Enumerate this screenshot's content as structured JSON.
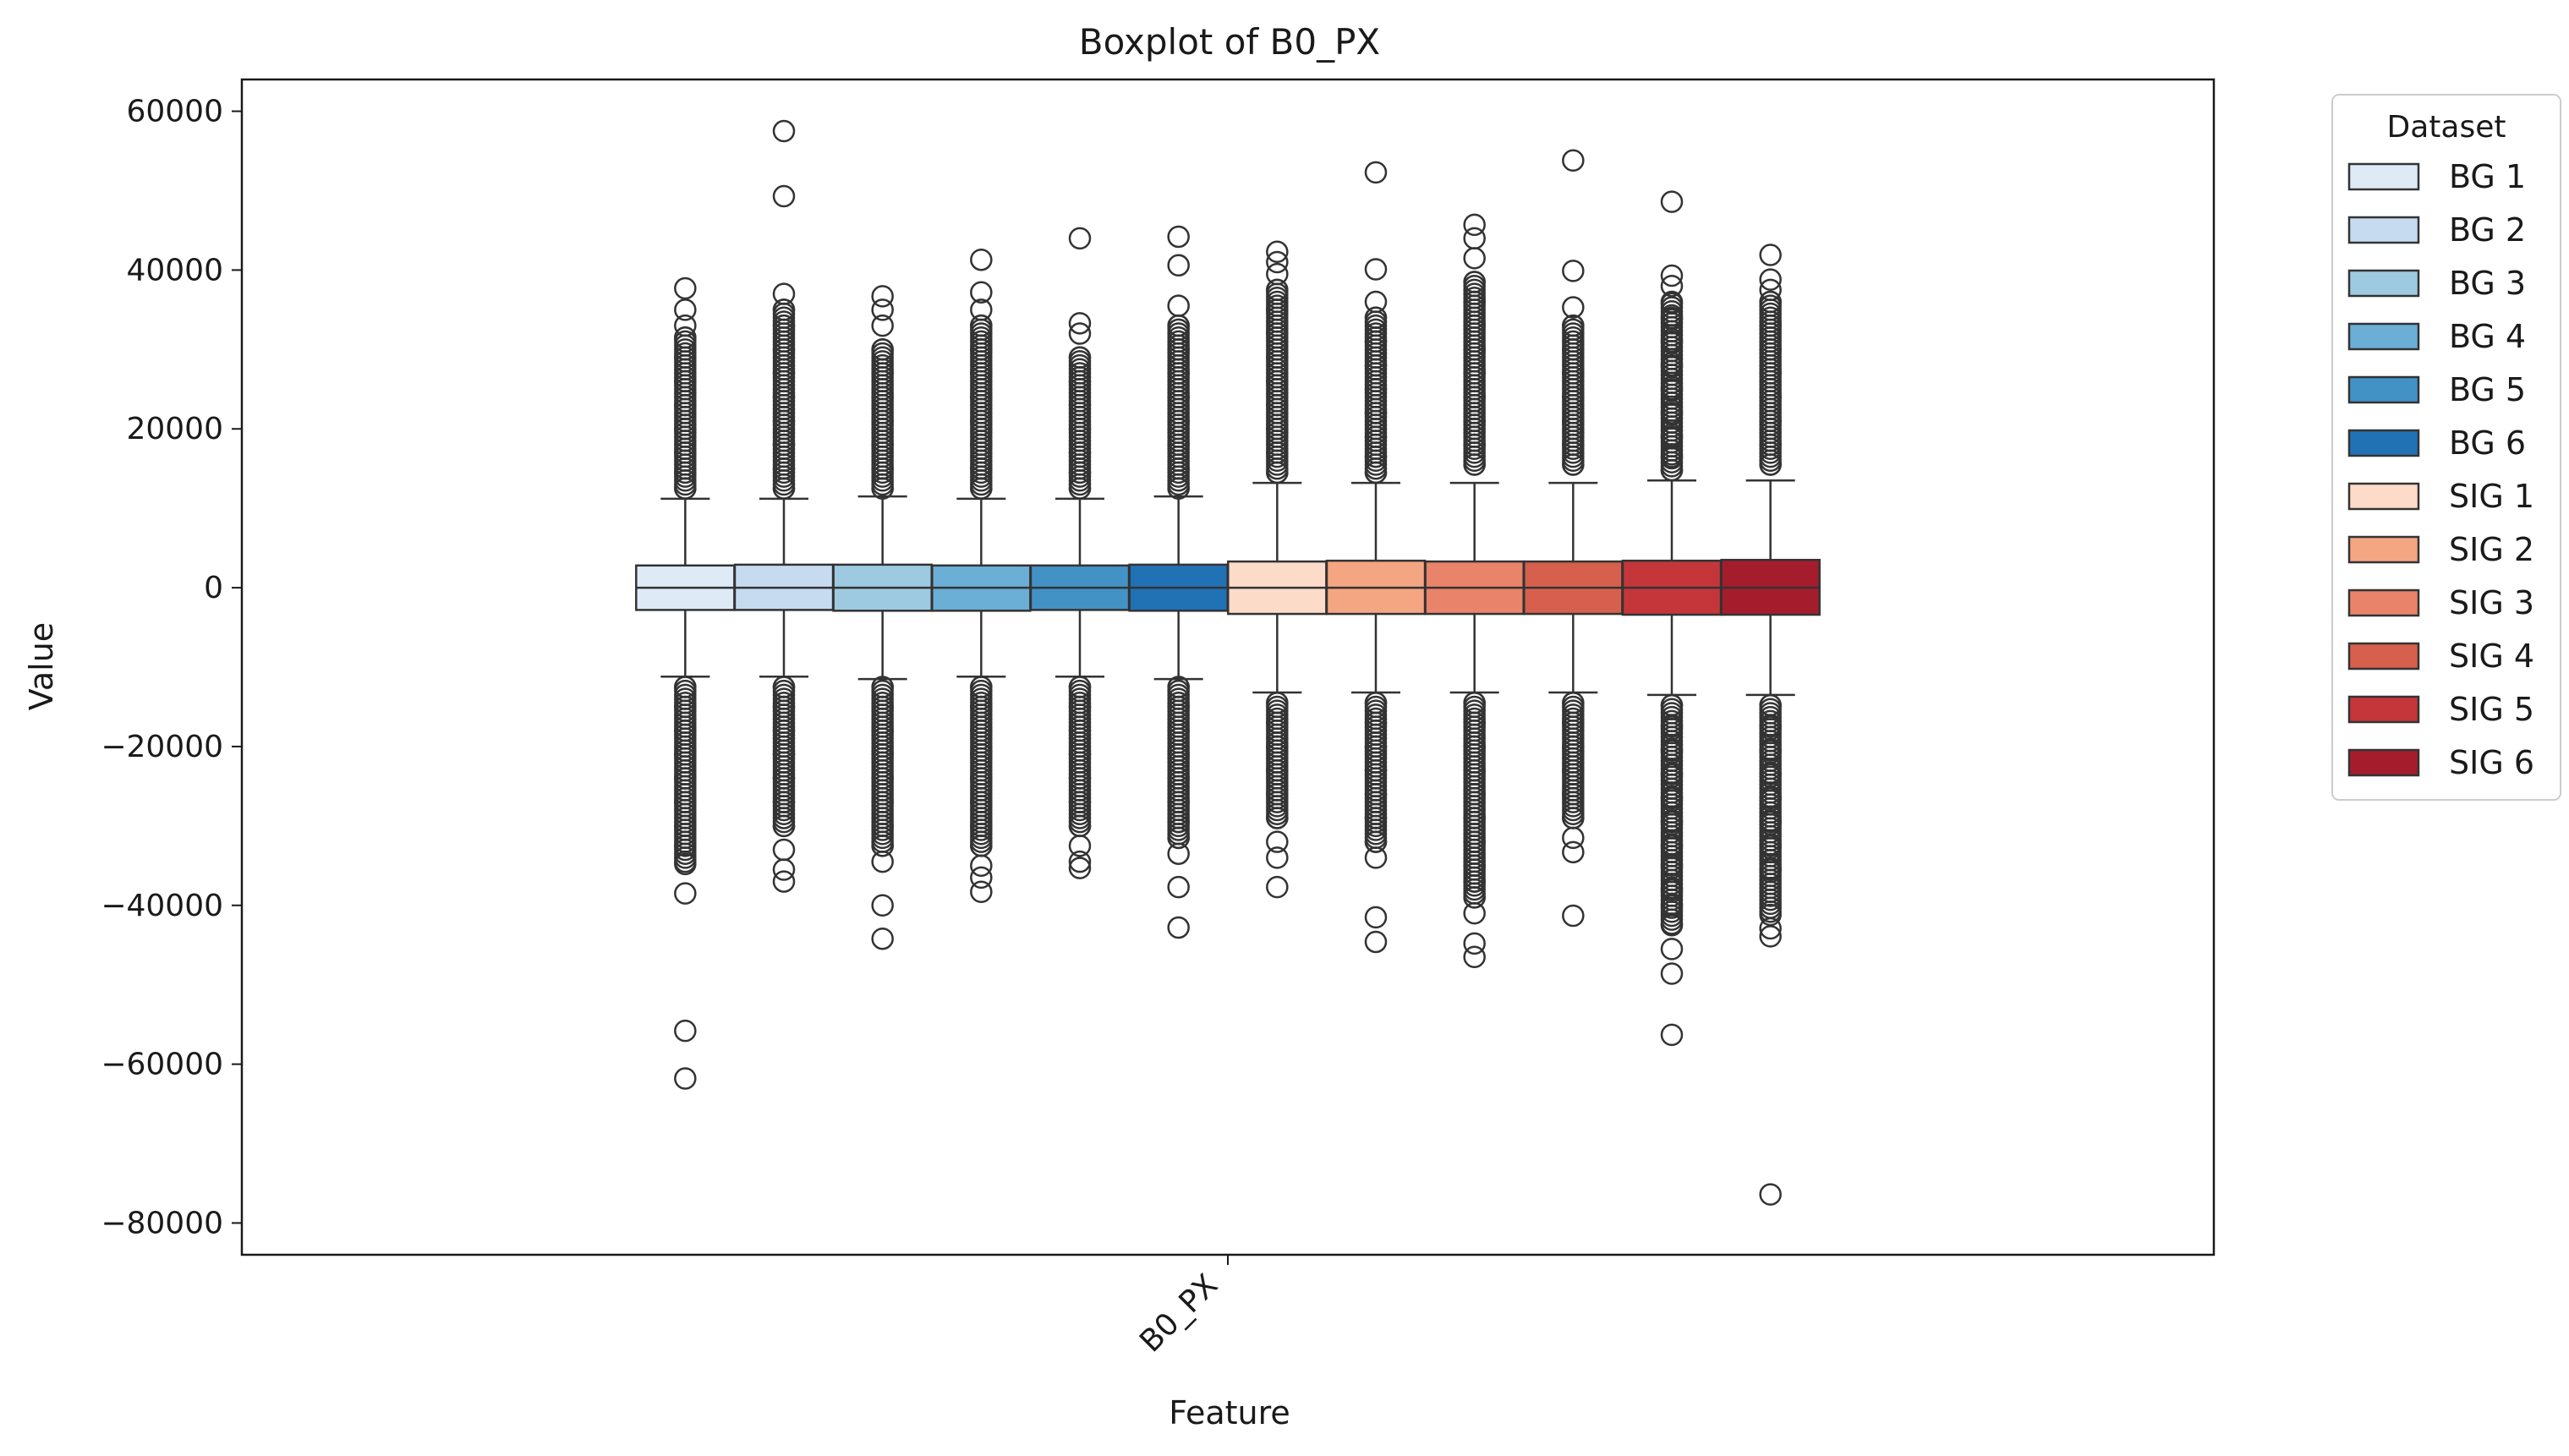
{
  "chart_data": {
    "type": "box",
    "title": "Boxplot of B0_PX",
    "xlabel": "Feature",
    "ylabel": "Value",
    "categories": [
      "B0_PX"
    ],
    "ylim": [
      -84000,
      64000
    ],
    "yticks": [
      60000,
      40000,
      20000,
      0,
      -20000,
      -40000,
      -60000,
      -80000
    ],
    "ytick_labels": [
      "60000",
      "40000",
      "20000",
      "0",
      "−20000",
      "−40000",
      "−60000",
      "−80000"
    ],
    "legend": {
      "title": "Dataset",
      "placement": "outside-right"
    },
    "series": [
      {
        "name": "BG 1",
        "color": "#deebf7",
        "q1": -2800,
        "median": 0,
        "q3": 2800,
        "whisker_low": -11200,
        "whisker_high": 11200,
        "outliers_high": [
          37700,
          35000,
          33000,
          31500,
          29000,
          26000,
          23000,
          20000,
          17000,
          14500,
          12500
        ],
        "outliers_low": [
          -12500,
          -15000,
          -18000,
          -21000,
          -24000,
          -27000,
          -30000,
          -32500,
          -34800,
          -38500,
          -55800,
          -61800
        ]
      },
      {
        "name": "BG 2",
        "color": "#c6dbef",
        "q1": -2800,
        "median": 0,
        "q3": 2900,
        "whisker_low": -11200,
        "whisker_high": 11200,
        "outliers_high": [
          57500,
          49300,
          37000,
          35000,
          33000,
          30000,
          27000,
          24000,
          21000,
          18000,
          15000,
          12500
        ],
        "outliers_low": [
          -12500,
          -15000,
          -18000,
          -21000,
          -24000,
          -27000,
          -30000,
          -33000,
          -35500,
          -37000
        ]
      },
      {
        "name": "BG 3",
        "color": "#9ecae1",
        "q1": -2900,
        "median": 0,
        "q3": 2900,
        "whisker_low": -11500,
        "whisker_high": 11500,
        "outliers_high": [
          36700,
          35000,
          33000,
          30000,
          27000,
          24000,
          21000,
          18000,
          15000,
          12500
        ],
        "outliers_low": [
          -12500,
          -15000,
          -18000,
          -21000,
          -24000,
          -27000,
          -30000,
          -32500,
          -34500,
          -40000,
          -44200
        ]
      },
      {
        "name": "BG 4",
        "color": "#6baed6",
        "q1": -2900,
        "median": 0,
        "q3": 2800,
        "whisker_low": -11200,
        "whisker_high": 11200,
        "outliers_high": [
          41300,
          37200,
          35000,
          33000,
          30000,
          27000,
          24000,
          21000,
          18000,
          15000,
          12500
        ],
        "outliers_low": [
          -12500,
          -15000,
          -18000,
          -21000,
          -24000,
          -27000,
          -30000,
          -32500,
          -35000,
          -36500,
          -38300
        ]
      },
      {
        "name": "BG 5",
        "color": "#4292c6",
        "q1": -2800,
        "median": 0,
        "q3": 2800,
        "whisker_low": -11200,
        "whisker_high": 11200,
        "outliers_high": [
          44000,
          33300,
          32000,
          29000,
          26000,
          23000,
          20000,
          17000,
          14500,
          12500
        ],
        "outliers_low": [
          -12500,
          -15000,
          -18000,
          -21000,
          -24000,
          -27000,
          -30000,
          -32500,
          -34500,
          -35300
        ]
      },
      {
        "name": "BG 6",
        "color": "#2171b5",
        "q1": -2900,
        "median": 0,
        "q3": 2900,
        "whisker_low": -11500,
        "whisker_high": 11500,
        "outliers_high": [
          44200,
          40600,
          35500,
          33000,
          30000,
          27000,
          24000,
          21000,
          18000,
          15000,
          12500
        ],
        "outliers_low": [
          -12500,
          -15000,
          -18000,
          -21000,
          -24000,
          -27000,
          -29500,
          -31500,
          -33500,
          -37700,
          -42800
        ]
      },
      {
        "name": "SIG 1",
        "color": "#fcdbc9",
        "q1": -3300,
        "median": 0,
        "q3": 3300,
        "whisker_low": -13200,
        "whisker_high": 13200,
        "outliers_high": [
          42300,
          41000,
          39500,
          37500,
          35000,
          32000,
          29000,
          26000,
          23000,
          20000,
          17000,
          14500
        ],
        "outliers_low": [
          -14500,
          -17000,
          -20000,
          -23000,
          -26000,
          -29000,
          -32000,
          -34000,
          -37700
        ]
      },
      {
        "name": "SIG 2",
        "color": "#f4a582",
        "q1": -3300,
        "median": 0,
        "q3": 3400,
        "whisker_low": -13200,
        "whisker_high": 13200,
        "outliers_high": [
          52300,
          40100,
          36000,
          34000,
          31000,
          28000,
          25000,
          22000,
          19000,
          16500,
          14500
        ],
        "outliers_low": [
          -14500,
          -17000,
          -20000,
          -23000,
          -26000,
          -29000,
          -32000,
          -34000,
          -41500,
          -44600
        ]
      },
      {
        "name": "SIG 3",
        "color": "#e9846a",
        "q1": -3300,
        "median": 0,
        "q3": 3300,
        "whisker_low": -13200,
        "whisker_high": 13200,
        "outliers_high": [
          45700,
          44000,
          41500,
          38500,
          36000,
          33000,
          30000,
          27000,
          24000,
          21000,
          18000,
          15500
        ],
        "outliers_low": [
          -14500,
          -17000,
          -20000,
          -23000,
          -26000,
          -29000,
          -32000,
          -35000,
          -37000,
          -39000,
          -41000,
          -44800,
          -46500
        ]
      },
      {
        "name": "SIG 4",
        "color": "#d6604d",
        "q1": -3300,
        "median": 0,
        "q3": 3300,
        "whisker_low": -13200,
        "whisker_high": 13200,
        "outliers_high": [
          53800,
          39900,
          35300,
          33000,
          30000,
          27000,
          24000,
          21000,
          18000,
          15500
        ],
        "outliers_low": [
          -14500,
          -17000,
          -20000,
          -23000,
          -26000,
          -29000,
          -31500,
          -33300,
          -41300
        ]
      },
      {
        "name": "SIG 5",
        "color": "#c4363a",
        "q1": -3400,
        "median": 0,
        "q3": 3400,
        "whisker_low": -13500,
        "whisker_high": 13500,
        "outliers_high": [
          48600,
          39300,
          38000,
          36000,
          34000,
          31000,
          28000,
          25000,
          22000,
          19000,
          16500,
          14800
        ],
        "outliers_low": [
          -14800,
          -17500,
          -20500,
          -23500,
          -26500,
          -29500,
          -32500,
          -35000,
          -38000,
          -40000,
          -42500,
          -45500,
          -48600,
          -56300
        ]
      },
      {
        "name": "SIG 6",
        "color": "#a51d2d",
        "q1": -3400,
        "median": 0,
        "q3": 3500,
        "whisker_low": -13500,
        "whisker_high": 13500,
        "outliers_high": [
          41900,
          38800,
          37500,
          36000,
          33000,
          30000,
          27000,
          24000,
          21000,
          18000,
          15500
        ],
        "outliers_low": [
          -14800,
          -17500,
          -20500,
          -23500,
          -26500,
          -29500,
          -32500,
          -35500,
          -41200,
          -42900,
          -43900,
          -76400
        ]
      }
    ]
  }
}
